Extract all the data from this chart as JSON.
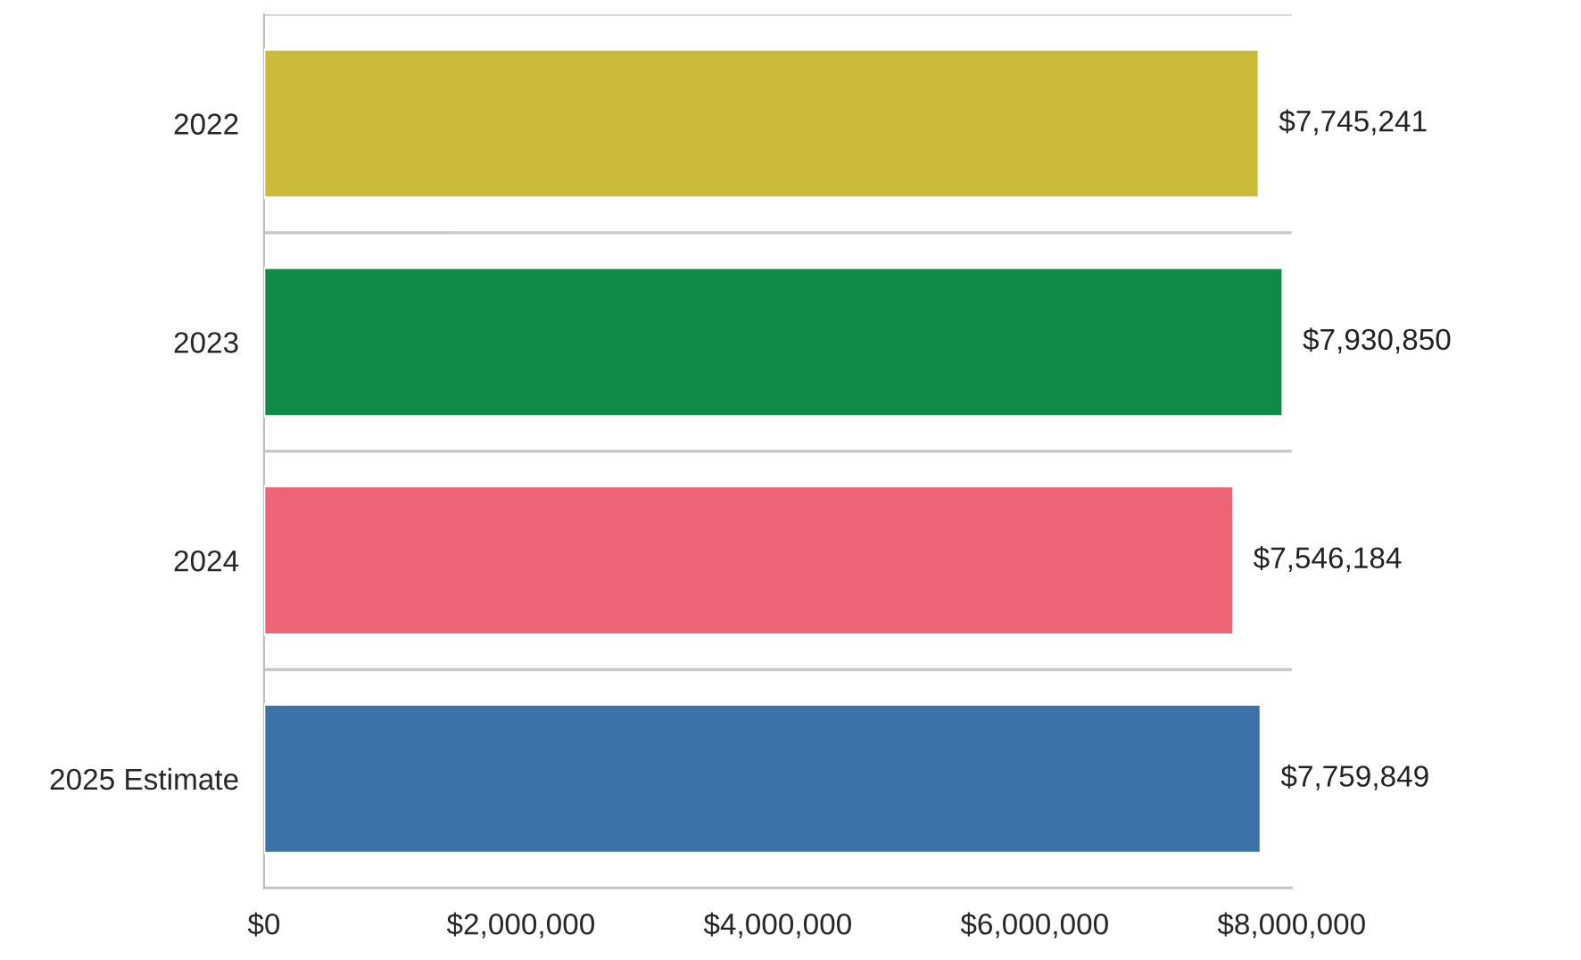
{
  "chart_data": {
    "type": "bar",
    "orientation": "horizontal",
    "categories": [
      "2022",
      "2023",
      "2024",
      "2025 Estimate"
    ],
    "values": [
      7745241,
      7930850,
      7546184,
      7759849
    ],
    "value_labels": [
      "$7,745,241",
      "$7,930,850",
      "$7,546,184",
      "$7,759,849"
    ],
    "colors": [
      "#cbbb3a",
      "#108a47",
      "#ec6475",
      "#3b73a8"
    ],
    "xlim": [
      0,
      8000000
    ],
    "xticks": [
      {
        "value": 0,
        "label": "$0"
      },
      {
        "value": 2000000,
        "label": "$2,000,000"
      },
      {
        "value": 4000000,
        "label": "$4,000,000"
      },
      {
        "value": 6000000,
        "label": "$6,000,000"
      },
      {
        "value": 8000000,
        "label": "$8,000,000"
      }
    ],
    "grid": "y"
  }
}
